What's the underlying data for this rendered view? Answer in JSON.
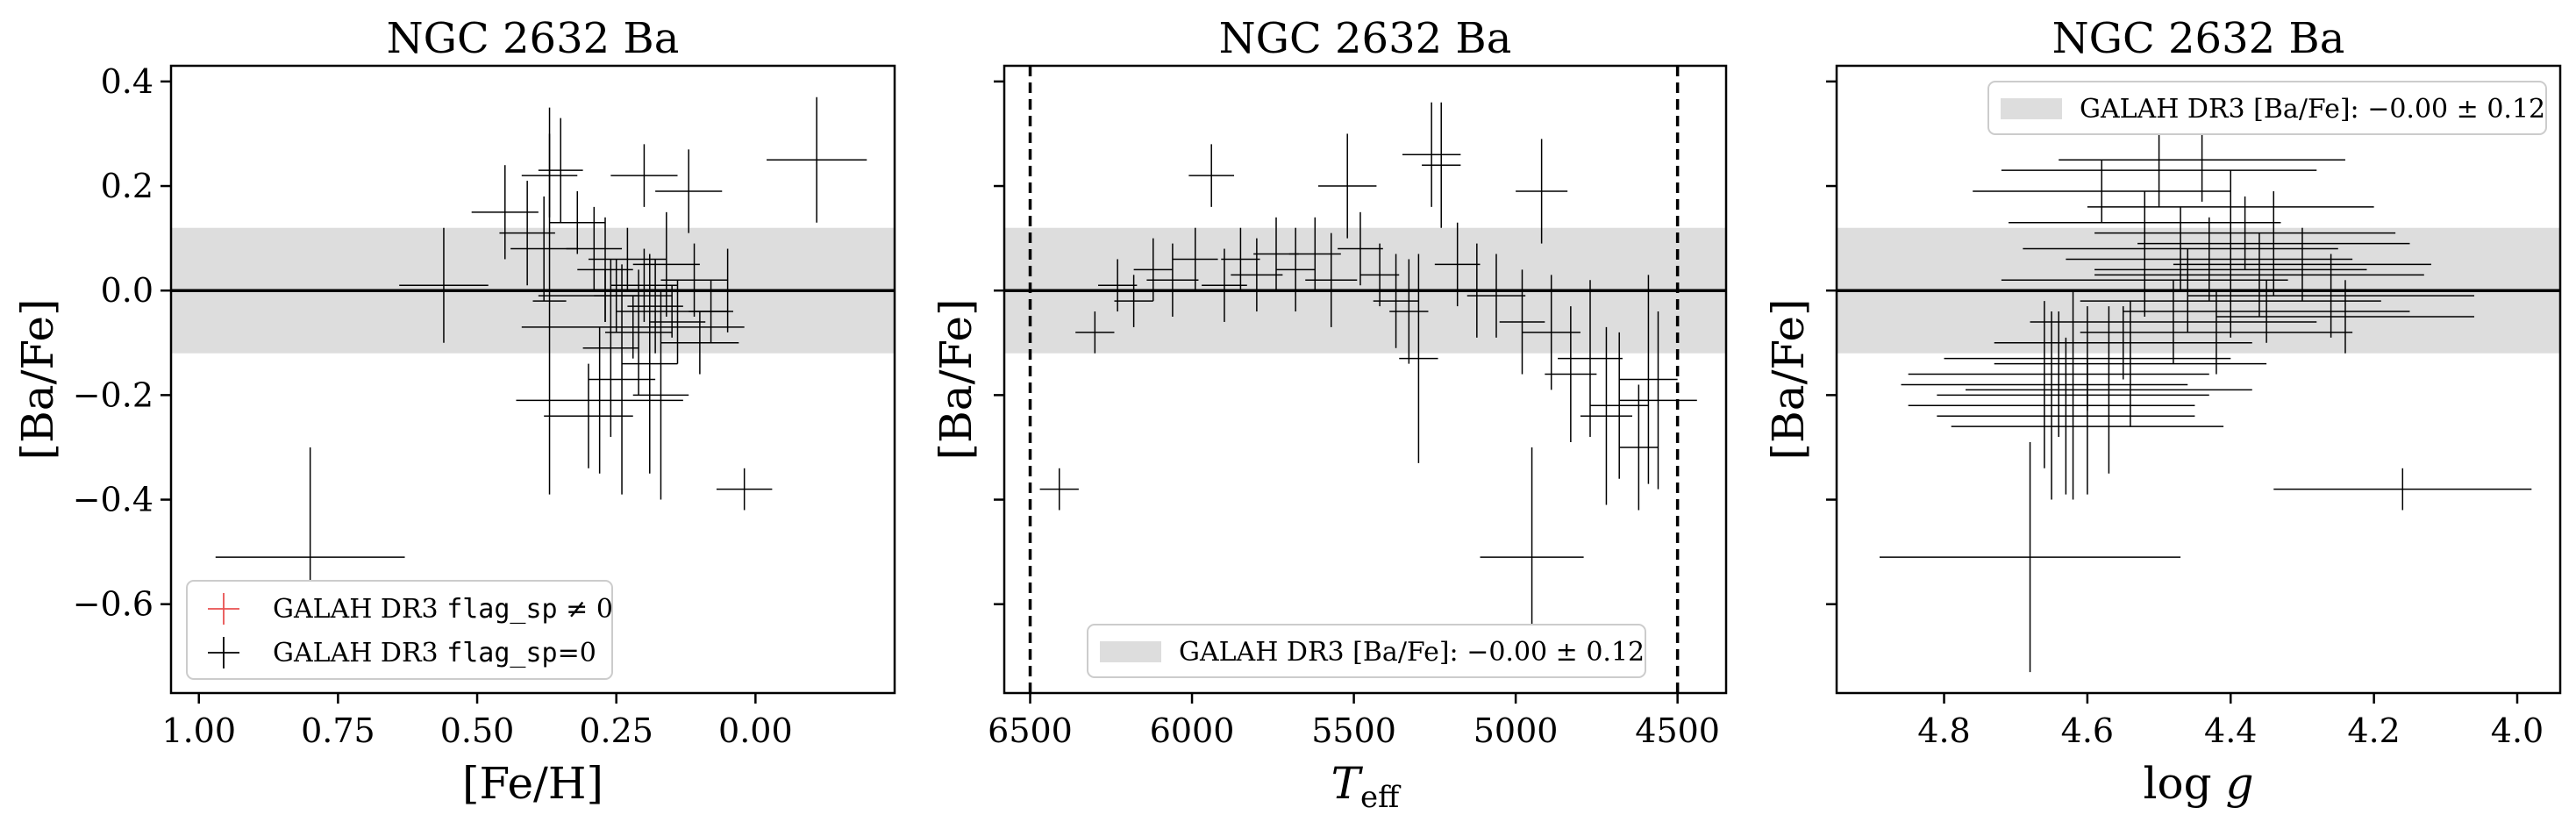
{
  "chart_data": [
    {
      "type": "scatter",
      "title": "NGC 2632 Ba",
      "xlabel": "[Fe/H]",
      "ylabel": "[Ba/Fe]",
      "xlim": [
        1.05,
        -0.25
      ],
      "ylim": [
        -0.77,
        0.43
      ],
      "xticks": [
        1.0,
        0.75,
        0.5,
        0.25,
        0.0
      ],
      "xtick_labels": [
        "1.00",
        "0.75",
        "0.50",
        "0.25",
        "0.00"
      ],
      "yticks": [
        0.4,
        0.2,
        0.0,
        -0.2,
        -0.4,
        -0.6
      ],
      "ytick_labels": [
        "0.4",
        "0.2",
        "0.0",
        "−0.2",
        "−0.4",
        "−0.6"
      ],
      "show_ytick_labels": true,
      "band": {
        "center": -0.0,
        "sigma": 0.12,
        "label": "GALAH DR3 [Ba/Fe]: −0.00 ± 0.12"
      },
      "hline": 0.0,
      "vlines": [],
      "legend": {
        "position": "lower-left",
        "entries": [
          {
            "symbol": "red-cross",
            "prefix": "GALAH DR3 ",
            "code": "flag_sp",
            "suffix": " ≠ 0",
            "color": "#e85050"
          },
          {
            "symbol": "black-cross",
            "prefix": "GALAH DR3 ",
            "code": "flag_sp",
            "suffix": "=0",
            "color": "#000000"
          }
        ]
      },
      "series": [
        {
          "name": "GALAH DR3 flag_sp=0",
          "color": "#000000",
          "points": [
            {
              "x": 0.56,
              "y": 0.01,
              "xerr": 0.08,
              "yerr": 0.11
            },
            {
              "x": 0.45,
              "y": 0.15,
              "xerr": 0.06,
              "yerr": 0.09
            },
            {
              "x": 0.41,
              "y": 0.11,
              "xerr": 0.05,
              "yerr": 0.1
            },
            {
              "x": 0.37,
              "y": 0.22,
              "xerr": 0.05,
              "yerr": 0.08
            },
            {
              "x": 0.35,
              "y": 0.23,
              "xerr": 0.04,
              "yerr": 0.1
            },
            {
              "x": 0.38,
              "y": 0.08,
              "xerr": 0.06,
              "yerr": 0.1
            },
            {
              "x": 0.37,
              "y": -0.02,
              "xerr": 0.03,
              "yerr": 0.37
            },
            {
              "x": 0.32,
              "y": 0.13,
              "xerr": 0.05,
              "yerr": 0.06
            },
            {
              "x": 0.2,
              "y": 0.22,
              "xerr": 0.06,
              "yerr": 0.06
            },
            {
              "x": 0.12,
              "y": 0.19,
              "xerr": 0.06,
              "yerr": 0.08
            },
            {
              "x": -0.11,
              "y": 0.25,
              "xerr": 0.09,
              "yerr": 0.12
            },
            {
              "x": 0.29,
              "y": 0.08,
              "xerr": 0.05,
              "yerr": 0.08
            },
            {
              "x": 0.27,
              "y": 0.04,
              "xerr": 0.05,
              "yerr": 0.1
            },
            {
              "x": 0.25,
              "y": -0.01,
              "xerr": 0.04,
              "yerr": 0.07
            },
            {
              "x": 0.23,
              "y": 0.06,
              "xerr": 0.07,
              "yerr": 0.06
            },
            {
              "x": 0.2,
              "y": 0.01,
              "xerr": 0.06,
              "yerr": 0.07
            },
            {
              "x": 0.18,
              "y": -0.03,
              "xerr": 0.05,
              "yerr": 0.09
            },
            {
              "x": 0.16,
              "y": 0.05,
              "xerr": 0.06,
              "yerr": 0.1
            },
            {
              "x": 0.14,
              "y": -0.06,
              "xerr": 0.05,
              "yerr": 0.08
            },
            {
              "x": 0.11,
              "y": 0.02,
              "xerr": 0.06,
              "yerr": 0.07
            },
            {
              "x": 0.08,
              "y": -0.04,
              "xerr": 0.04,
              "yerr": 0.06
            },
            {
              "x": 0.05,
              "y": 0.0,
              "xerr": 0.05,
              "yerr": 0.08
            },
            {
              "x": 0.21,
              "y": -0.08,
              "xerr": 0.06,
              "yerr": 0.12
            },
            {
              "x": 0.26,
              "y": -0.11,
              "xerr": 0.05,
              "yerr": 0.17
            },
            {
              "x": 0.19,
              "y": -0.14,
              "xerr": 0.05,
              "yerr": 0.21
            },
            {
              "x": 0.24,
              "y": -0.17,
              "xerr": 0.06,
              "yerr": 0.22
            },
            {
              "x": 0.17,
              "y": -0.2,
              "xerr": 0.05,
              "yerr": 0.2
            },
            {
              "x": 0.28,
              "y": -0.21,
              "xerr": 0.15,
              "yerr": 0.14
            },
            {
              "x": 0.3,
              "y": -0.24,
              "xerr": 0.08,
              "yerr": 0.1
            },
            {
              "x": 0.22,
              "y": -0.07,
              "xerr": 0.2,
              "yerr": 0.06
            },
            {
              "x": 0.15,
              "y": -0.04,
              "xerr": 0.1,
              "yerr": 0.05
            },
            {
              "x": 0.1,
              "y": -0.1,
              "xerr": 0.07,
              "yerr": 0.06
            },
            {
              "x": 0.27,
              "y": -0.01,
              "xerr": 0.12,
              "yerr": 0.05
            },
            {
              "x": 0.02,
              "y": -0.38,
              "xerr": 0.05,
              "yerr": 0.04
            },
            {
              "x": 0.8,
              "y": -0.51,
              "xerr": 0.17,
              "yerr": 0.21
            }
          ]
        }
      ]
    },
    {
      "type": "scatter",
      "title": "NGC 2632 Ba",
      "xlabel": "T_eff",
      "ylabel": "[Ba/Fe]",
      "xlim": [
        6580,
        4350
      ],
      "ylim": [
        -0.77,
        0.43
      ],
      "xticks": [
        6500,
        6000,
        5500,
        5000,
        4500
      ],
      "xtick_labels": [
        "6500",
        "6000",
        "5500",
        "5000",
        "4500"
      ],
      "yticks": [
        0.4,
        0.2,
        0.0,
        -0.2,
        -0.4,
        -0.6
      ],
      "ytick_labels": [],
      "show_ytick_labels": false,
      "band": {
        "center": -0.0,
        "sigma": 0.12,
        "label": "GALAH DR3 [Ba/Fe]: −0.00 ± 0.12"
      },
      "hline": 0.0,
      "vlines": [
        6500,
        4500
      ],
      "legend": {
        "position": "lower-center",
        "entries": [
          {
            "symbol": "band-patch",
            "text": "GALAH DR3 [Ba/Fe]: −0.00 ± 0.12",
            "color": "#dddddd"
          }
        ]
      },
      "series": [
        {
          "name": "GALAH DR3 flag_sp=0",
          "color": "#000000",
          "points": [
            {
              "x": 6300,
              "y": -0.08,
              "xerr": 60,
              "yerr": 0.04
            },
            {
              "x": 6230,
              "y": 0.01,
              "xerr": 60,
              "yerr": 0.05
            },
            {
              "x": 6180,
              "y": -0.02,
              "xerr": 60,
              "yerr": 0.05
            },
            {
              "x": 6120,
              "y": 0.04,
              "xerr": 60,
              "yerr": 0.06
            },
            {
              "x": 6060,
              "y": 0.02,
              "xerr": 80,
              "yerr": 0.07
            },
            {
              "x": 5990,
              "y": 0.06,
              "xerr": 70,
              "yerr": 0.06
            },
            {
              "x": 5940,
              "y": 0.22,
              "xerr": 70,
              "yerr": 0.06
            },
            {
              "x": 5900,
              "y": 0.01,
              "xerr": 70,
              "yerr": 0.07
            },
            {
              "x": 5850,
              "y": 0.06,
              "xerr": 60,
              "yerr": 0.06
            },
            {
              "x": 5800,
              "y": 0.03,
              "xerr": 80,
              "yerr": 0.07
            },
            {
              "x": 5740,
              "y": 0.07,
              "xerr": 70,
              "yerr": 0.07
            },
            {
              "x": 5680,
              "y": 0.04,
              "xerr": 60,
              "yerr": 0.08
            },
            {
              "x": 5620,
              "y": 0.07,
              "xerr": 80,
              "yerr": 0.07
            },
            {
              "x": 5570,
              "y": 0.02,
              "xerr": 80,
              "yerr": 0.09
            },
            {
              "x": 5520,
              "y": 0.2,
              "xerr": 90,
              "yerr": 0.1
            },
            {
              "x": 5480,
              "y": 0.08,
              "xerr": 70,
              "yerr": 0.07
            },
            {
              "x": 5420,
              "y": 0.03,
              "xerr": 60,
              "yerr": 0.06
            },
            {
              "x": 5370,
              "y": -0.02,
              "xerr": 70,
              "yerr": 0.09
            },
            {
              "x": 5330,
              "y": -0.04,
              "xerr": 60,
              "yerr": 0.1
            },
            {
              "x": 5300,
              "y": -0.13,
              "xerr": 60,
              "yerr": 0.2
            },
            {
              "x": 5260,
              "y": 0.26,
              "xerr": 90,
              "yerr": 0.1
            },
            {
              "x": 5230,
              "y": 0.24,
              "xerr": 60,
              "yerr": 0.12
            },
            {
              "x": 5180,
              "y": 0.05,
              "xerr": 70,
              "yerr": 0.08
            },
            {
              "x": 5120,
              "y": 0.0,
              "xerr": 80,
              "yerr": 0.09
            },
            {
              "x": 5060,
              "y": -0.01,
              "xerr": 90,
              "yerr": 0.08
            },
            {
              "x": 4980,
              "y": -0.06,
              "xerr": 70,
              "yerr": 0.1
            },
            {
              "x": 4920,
              "y": 0.19,
              "xerr": 80,
              "yerr": 0.1
            },
            {
              "x": 4890,
              "y": -0.08,
              "xerr": 90,
              "yerr": 0.11
            },
            {
              "x": 4830,
              "y": -0.16,
              "xerr": 80,
              "yerr": 0.13
            },
            {
              "x": 4770,
              "y": -0.13,
              "xerr": 100,
              "yerr": 0.15
            },
            {
              "x": 4720,
              "y": -0.24,
              "xerr": 80,
              "yerr": 0.17
            },
            {
              "x": 4680,
              "y": -0.22,
              "xerr": 90,
              "yerr": 0.14
            },
            {
              "x": 4620,
              "y": -0.3,
              "xerr": 60,
              "yerr": 0.12
            },
            {
              "x": 4590,
              "y": -0.17,
              "xerr": 90,
              "yerr": 0.2
            },
            {
              "x": 4560,
              "y": -0.21,
              "xerr": 120,
              "yerr": 0.17
            },
            {
              "x": 4950,
              "y": -0.51,
              "xerr": 160,
              "yerr": 0.21
            },
            {
              "x": 6410,
              "y": -0.38,
              "xerr": 60,
              "yerr": 0.04
            }
          ]
        }
      ]
    },
    {
      "type": "scatter",
      "title": "NGC 2632 Ba",
      "xlabel": "log g",
      "ylabel": "[Ba/Fe]",
      "xlim": [
        4.95,
        3.94
      ],
      "ylim": [
        -0.77,
        0.43
      ],
      "xticks": [
        4.8,
        4.6,
        4.4,
        4.2,
        4.0
      ],
      "xtick_labels": [
        "4.8",
        "4.6",
        "4.4",
        "4.2",
        "4.0"
      ],
      "yticks": [
        0.4,
        0.2,
        0.0,
        -0.2,
        -0.4,
        -0.6
      ],
      "ytick_labels": [],
      "show_ytick_labels": false,
      "band": {
        "center": -0.0,
        "sigma": 0.12,
        "label": "GALAH DR3 [Ba/Fe]: −0.00 ± 0.12"
      },
      "hline": 0.0,
      "vlines": [],
      "legend": {
        "position": "top-right",
        "entries": [
          {
            "symbol": "band-patch",
            "text": "GALAH DR3 [Ba/Fe]: −0.00 ± 0.12",
            "color": "#dddddd"
          }
        ]
      },
      "series": [
        {
          "name": "GALAH DR3 flag_sp=0",
          "color": "#000000",
          "points": [
            {
              "x": 4.5,
              "y": 0.23,
              "xerr": 0.22,
              "yerr": 0.07
            },
            {
              "x": 4.44,
              "y": 0.25,
              "xerr": 0.2,
              "yerr": 0.08
            },
            {
              "x": 4.58,
              "y": 0.19,
              "xerr": 0.18,
              "yerr": 0.06
            },
            {
              "x": 4.4,
              "y": 0.16,
              "xerr": 0.2,
              "yerr": 0.07
            },
            {
              "x": 4.52,
              "y": 0.13,
              "xerr": 0.19,
              "yerr": 0.06
            },
            {
              "x": 4.38,
              "y": 0.11,
              "xerr": 0.21,
              "yerr": 0.07
            },
            {
              "x": 4.47,
              "y": 0.08,
              "xerr": 0.22,
              "yerr": 0.08
            },
            {
              "x": 4.43,
              "y": 0.06,
              "xerr": 0.2,
              "yerr": 0.08
            },
            {
              "x": 4.4,
              "y": 0.04,
              "xerr": 0.19,
              "yerr": 0.07
            },
            {
              "x": 4.36,
              "y": 0.03,
              "xerr": 0.23,
              "yerr": 0.08
            },
            {
              "x": 4.52,
              "y": 0.02,
              "xerr": 0.2,
              "yerr": 0.07
            },
            {
              "x": 4.46,
              "y": 0.0,
              "xerr": 0.22,
              "yerr": 0.08
            },
            {
              "x": 4.4,
              "y": -0.02,
              "xerr": 0.21,
              "yerr": 0.07
            },
            {
              "x": 4.35,
              "y": -0.04,
              "xerr": 0.2,
              "yerr": 0.06
            },
            {
              "x": 4.48,
              "y": -0.06,
              "xerr": 0.2,
              "yerr": 0.08
            },
            {
              "x": 4.42,
              "y": -0.08,
              "xerr": 0.19,
              "yerr": 0.08
            },
            {
              "x": 4.55,
              "y": -0.1,
              "xerr": 0.18,
              "yerr": 0.07
            },
            {
              "x": 4.6,
              "y": -0.13,
              "xerr": 0.2,
              "yerr": 0.1
            },
            {
              "x": 4.64,
              "y": -0.16,
              "xerr": 0.21,
              "yerr": 0.12
            },
            {
              "x": 4.66,
              "y": -0.18,
              "xerr": 0.2,
              "yerr": 0.16
            },
            {
              "x": 4.62,
              "y": -0.2,
              "xerr": 0.19,
              "yerr": 0.2
            },
            {
              "x": 4.65,
              "y": -0.22,
              "xerr": 0.2,
              "yerr": 0.18
            },
            {
              "x": 4.63,
              "y": -0.24,
              "xerr": 0.18,
              "yerr": 0.15
            },
            {
              "x": 4.6,
              "y": -0.26,
              "xerr": 0.19,
              "yerr": 0.13
            },
            {
              "x": 4.57,
              "y": -0.19,
              "xerr": 0.2,
              "yerr": 0.16
            },
            {
              "x": 4.54,
              "y": -0.14,
              "xerr": 0.19,
              "yerr": 0.12
            },
            {
              "x": 4.3,
              "y": 0.05,
              "xerr": 0.18,
              "yerr": 0.07
            },
            {
              "x": 4.26,
              "y": -0.01,
              "xerr": 0.2,
              "yerr": 0.08
            },
            {
              "x": 4.24,
              "y": -0.05,
              "xerr": 0.18,
              "yerr": 0.07
            },
            {
              "x": 4.34,
              "y": 0.09,
              "xerr": 0.19,
              "yerr": 0.1
            },
            {
              "x": 4.16,
              "y": -0.38,
              "xerr": 0.18,
              "yerr": 0.04
            },
            {
              "x": 4.68,
              "y": -0.51,
              "xerr": 0.21,
              "yerr": 0.22
            }
          ]
        }
      ]
    }
  ]
}
